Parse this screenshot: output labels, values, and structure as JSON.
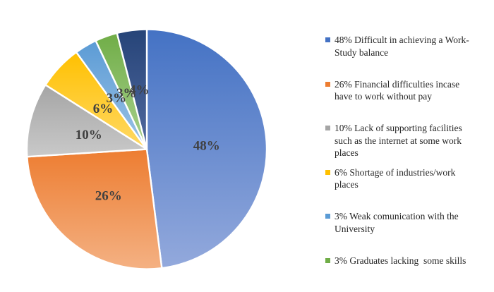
{
  "chart_data": {
    "type": "pie",
    "title": "",
    "legend_position": "right",
    "background": "#FFFFFF",
    "percent_label_color": "#404040",
    "legend_text_color": "#262626",
    "slice_border_color": "#FFFFFF",
    "slices": [
      {
        "value": 48,
        "pct_label": "48%",
        "legend_label": "48% Difficult in achieving a Work-\nStudy balance",
        "color": "#4472C4",
        "color_light": "#93A9DC"
      },
      {
        "value": 26,
        "pct_label": "26%",
        "legend_label": "26% Financial difficulties incase\nhave to work without pay",
        "color": "#ED7D31",
        "color_light": "#F4B183"
      },
      {
        "value": 10,
        "pct_label": "10%",
        "legend_label": "10% Lack of supporting facilities\nsuch as the internet at some work\nplaces",
        "color": "#A5A5A5",
        "color_light": "#C9C9C9"
      },
      {
        "value": 6,
        "pct_label": "6%",
        "legend_label": "6% Shortage of industries/work\nplaces",
        "color": "#FFC000",
        "color_light": "#FFD966"
      },
      {
        "value": 3,
        "pct_label": "3%",
        "legend_label": "3% Weak comunication with the\nUniversity",
        "color": "#5B9BD5",
        "color_light": "#9DC3E6"
      },
      {
        "value": 3,
        "pct_label": "3%",
        "legend_label": "3% Graduates lacking  some skills",
        "color": "#70AD47",
        "color_light": "#A9D18E"
      },
      {
        "value": 4,
        "pct_label": "4%",
        "legend_label": null,
        "color": "#264478",
        "color_light": "#51699F"
      }
    ]
  }
}
